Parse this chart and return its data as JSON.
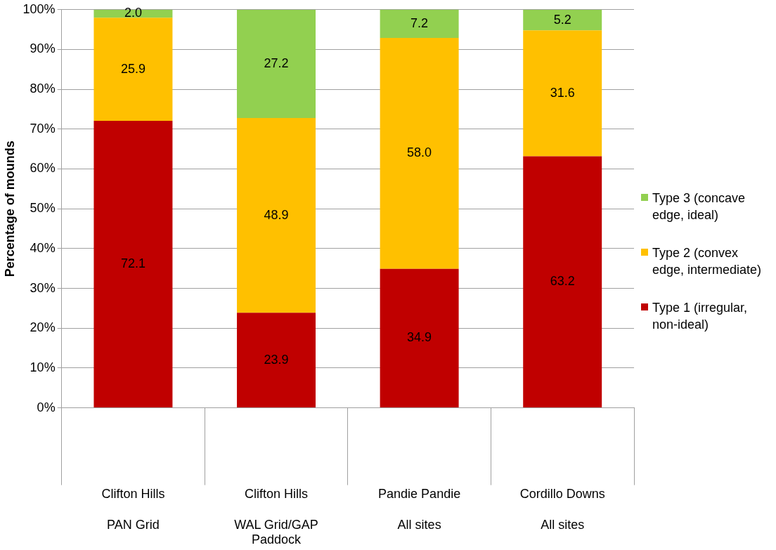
{
  "chart_data": {
    "type": "bar",
    "stacked": true,
    "ylabel": "Percentage of mounds",
    "categories": [
      "Clifton Hills\nPAN Grid",
      "Clifton Hills\nWAL Grid/GAP Paddock",
      "Pandie Pandie\nAll sites",
      "Cordillo Downs\nAll sites"
    ],
    "series": [
      {
        "name": "Type 1 (irregular, non-ideal)",
        "color": "#c00000",
        "values": [
          72.1,
          23.9,
          34.9,
          63.2
        ],
        "value_labels": [
          "72.1",
          "23.9",
          "34.9",
          "63.2"
        ]
      },
      {
        "name": "Type 2 (convex edge, intermediate)",
        "color": "#ffc000",
        "values": [
          25.9,
          48.9,
          58.0,
          31.6
        ],
        "value_labels": [
          "25.9",
          "48.9",
          "58.0",
          "31.6"
        ]
      },
      {
        "name": "Type 3 (concave edge, ideal)",
        "color": "#92d050",
        "values": [
          2.0,
          27.2,
          7.2,
          5.2
        ],
        "value_labels": [
          "2.0",
          "27.2",
          "7.2",
          "5.2"
        ]
      }
    ],
    "ylim": [
      0,
      100
    ],
    "yticks": [
      {
        "value": 0,
        "label": "0%"
      },
      {
        "value": 10,
        "label": "10%"
      },
      {
        "value": 20,
        "label": "20%"
      },
      {
        "value": 30,
        "label": "30%"
      },
      {
        "value": 40,
        "label": "40%"
      },
      {
        "value": 50,
        "label": "50%"
      },
      {
        "value": 60,
        "label": "60%"
      },
      {
        "value": 70,
        "label": "70%"
      },
      {
        "value": 80,
        "label": "80%"
      },
      {
        "value": 90,
        "label": "90%"
      },
      {
        "value": 100,
        "label": "100%"
      }
    ],
    "grid": "y",
    "legend": "right"
  }
}
